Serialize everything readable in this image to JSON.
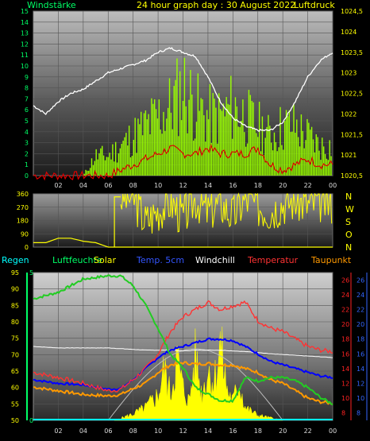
{
  "header": {
    "left_title": "Windstärke",
    "center_title": "24 hour graph day : 30 August 2022",
    "right_title": "Luftdruck"
  },
  "legend": {
    "regen": "Regen",
    "luftfeuchte": "Luftfeuchte",
    "solar": "Solar",
    "temp5cm": "Temp. 5cm",
    "windchill": "Windchill",
    "temperatur": "Temperatur",
    "taupunkt": "Taupunkt"
  },
  "colors": {
    "wind_bar": "#99ff00",
    "pressure": "#ffffff",
    "wind_low": "#dd0000",
    "direction": "#ffff00",
    "humidity": "#22cc22",
    "solar": "#ffff00",
    "temp5cm": "#0000ff",
    "temperatur": "#ff3333",
    "taupunkt": "#ff9900",
    "windchill": "#ffffff",
    "axis_green": "#00ff66",
    "axis_yellow": "#ffff00",
    "axis_cyan": "#00ffff",
    "axis_red": "#ff2222",
    "axis_blue": "#3366ff",
    "grid": "#555555"
  },
  "x_ticks": [
    "02",
    "04",
    "06",
    "08",
    "10",
    "12",
    "14",
    "16",
    "18",
    "20",
    "22",
    "00"
  ],
  "chart_data": [
    {
      "type": "bar",
      "title": "Windstärke / Luftdruck",
      "x_hours_span": [
        0,
        24
      ],
      "wind_ylim": [
        0,
        15
      ],
      "wind_ticks": [
        "0",
        "1",
        "2",
        "3",
        "4",
        "5",
        "6",
        "7",
        "8",
        "9",
        "10",
        "11",
        "12",
        "13",
        "14",
        "15"
      ],
      "pressure_ylim": [
        1020.5,
        1024.5
      ],
      "pressure_ticks": [
        "1020,5",
        "1021",
        "1021,5",
        "1022",
        "1022,5",
        "1023",
        "1023,5",
        "1024",
        "1024,5"
      ],
      "series": [
        {
          "name": "Windstärke",
          "hours": [
            0,
            1,
            2,
            3,
            4,
            5,
            6,
            7,
            8,
            9,
            10,
            11,
            12,
            13,
            14,
            15,
            16,
            17,
            18,
            19,
            20,
            21,
            22,
            23,
            24
          ],
          "values": [
            0,
            0,
            0,
            0,
            0,
            2,
            2,
            3,
            4,
            5,
            6,
            7,
            9,
            7,
            6,
            6,
            7,
            6,
            5,
            4,
            5,
            5,
            4,
            3,
            3
          ]
        },
        {
          "name": "Luftdruck",
          "hours": [
            0,
            1,
            2,
            3,
            4,
            5,
            6,
            7,
            8,
            9,
            10,
            11,
            12,
            13,
            14,
            15,
            16,
            17,
            18,
            19,
            20,
            21,
            22,
            23,
            24
          ],
          "values": [
            1022.2,
            1022.0,
            1022.3,
            1022.5,
            1022.6,
            1022.8,
            1023.0,
            1023.1,
            1023.2,
            1023.3,
            1023.5,
            1023.6,
            1023.5,
            1023.4,
            1022.9,
            1022.3,
            1021.9,
            1021.7,
            1021.6,
            1021.6,
            1021.8,
            1022.3,
            1022.9,
            1023.3,
            1023.5
          ]
        },
        {
          "name": "Windstärke min",
          "hours": [
            0,
            4,
            5,
            6,
            7,
            8,
            9,
            10,
            11,
            12,
            13,
            14,
            15,
            16,
            17,
            18,
            19,
            20,
            21,
            22,
            23,
            24
          ],
          "values": [
            0,
            0,
            0,
            0,
            0.5,
            1,
            1.5,
            2,
            2.5,
            2,
            2,
            2.5,
            2,
            2,
            2,
            2.5,
            1,
            0.5,
            1,
            1.5,
            1,
            1
          ]
        }
      ]
    },
    {
      "type": "line",
      "title": "Windrichtung",
      "direction_ticks": [
        "360",
        "270",
        "180",
        "90",
        "0"
      ],
      "direction_labels": [
        "N",
        "W",
        "S",
        "O",
        "N"
      ],
      "ylim": [
        0,
        360
      ],
      "series": [
        {
          "name": "Windrichtung",
          "hours": [
            0,
            1,
            2,
            3,
            4,
            5,
            6,
            6.5,
            7,
            8,
            9,
            10,
            11,
            12,
            13,
            14,
            15,
            16,
            17,
            18,
            19,
            20,
            21,
            22,
            23,
            24
          ],
          "values": [
            30,
            30,
            60,
            60,
            40,
            30,
            0,
            300,
            340,
            340,
            170,
            250,
            310,
            200,
            330,
            240,
            300,
            210,
            330,
            280,
            250,
            300,
            320,
            290,
            310,
            300
          ]
        }
      ]
    },
    {
      "type": "line",
      "title": "Regen / Luftfeuchte / Solar / Temperatur",
      "humidity_ylim": [
        50,
        95
      ],
      "humidity_ticks": [
        "50",
        "55",
        "60",
        "65",
        "70",
        "75",
        "80",
        "85",
        "90",
        "95"
      ],
      "rain_ticks": [
        "0",
        "5"
      ],
      "temp_ticks": [
        "8",
        "10",
        "12",
        "14",
        "16",
        "18",
        "20",
        "22",
        "24",
        "26"
      ],
      "temp_ylim": [
        7,
        27
      ],
      "series": [
        {
          "name": "Luftfeuchte",
          "hours": [
            0,
            2,
            4,
            6,
            7,
            8,
            9,
            10,
            11,
            12,
            13,
            14,
            15,
            16,
            17,
            18,
            19,
            20,
            21,
            22,
            23,
            24
          ],
          "values": [
            87,
            89,
            93,
            94,
            94,
            91,
            85,
            78,
            70,
            66,
            60,
            58,
            56,
            56,
            63,
            62,
            63,
            63,
            62,
            60,
            57,
            55
          ]
        },
        {
          "name": "Temperatur",
          "hours": [
            0,
            2,
            4,
            6,
            7,
            8,
            9,
            10,
            11,
            12,
            13,
            14,
            15,
            16,
            17,
            18,
            19,
            20,
            21,
            22,
            23,
            24
          ],
          "values": [
            13.5,
            12.8,
            12.0,
            11.0,
            11.2,
            12.5,
            14.0,
            16.0,
            19.0,
            21.0,
            22.0,
            23.0,
            22.0,
            22.5,
            23.0,
            20.5,
            19.5,
            19.0,
            18.0,
            17.0,
            16.5,
            16.3
          ]
        },
        {
          "name": "Taupunkt",
          "hours": [
            0,
            2,
            4,
            6,
            7,
            8,
            9,
            10,
            11,
            12,
            13,
            14,
            15,
            16,
            17,
            18,
            19,
            20,
            21,
            22,
            23,
            24
          ],
          "values": [
            11.5,
            11.0,
            10.5,
            10.3,
            10.5,
            11.3,
            12.0,
            13.5,
            14.5,
            14.8,
            14.6,
            14.7,
            14.5,
            14.5,
            14.0,
            13.5,
            12.5,
            12.0,
            11.0,
            10.0,
            9.5,
            9.3
          ]
        },
        {
          "name": "Temp. 5cm",
          "hours": [
            0,
            2,
            4,
            6,
            7,
            8,
            9,
            10,
            11,
            12,
            13,
            14,
            15,
            16,
            17,
            18,
            19,
            20,
            21,
            22,
            23,
            24
          ],
          "values": [
            12.5,
            12.0,
            11.8,
            11.2,
            11.3,
            12.5,
            14.0,
            15.5,
            16.5,
            17.0,
            17.5,
            18.0,
            18.0,
            17.8,
            17.0,
            16.0,
            15.0,
            14.5,
            14.0,
            13.5,
            13.0,
            12.8
          ]
        },
        {
          "name": "Windchill",
          "hours": [
            0,
            2,
            4,
            6,
            7,
            8,
            9,
            10,
            11,
            12,
            13,
            14,
            15,
            16,
            17,
            18,
            19,
            20,
            21,
            22,
            23,
            24
          ],
          "values": [
            17.0,
            16.8,
            16.8,
            16.8,
            16.7,
            16.6,
            16.5,
            16.5,
            16.5,
            16.4,
            16.5,
            16.5,
            16.5,
            16.4,
            16.3,
            16.2,
            16.0,
            15.9,
            15.8,
            15.7,
            15.6,
            15.5
          ]
        },
        {
          "name": "Solar",
          "hours": [
            6.5,
            8,
            9,
            10,
            10.5,
            11,
            11.5,
            12,
            12.5,
            13,
            13.5,
            14,
            14.5,
            15,
            15.5,
            16,
            16.5,
            17,
            18,
            19,
            20
          ],
          "values": [
            0,
            5,
            10,
            20,
            40,
            20,
            50,
            25,
            15,
            50,
            20,
            40,
            30,
            60,
            25,
            15,
            30,
            10,
            4,
            2,
            0
          ]
        },
        {
          "name": "Regen",
          "hours": [
            0,
            24
          ],
          "values": [
            0,
            0
          ]
        }
      ]
    }
  ]
}
